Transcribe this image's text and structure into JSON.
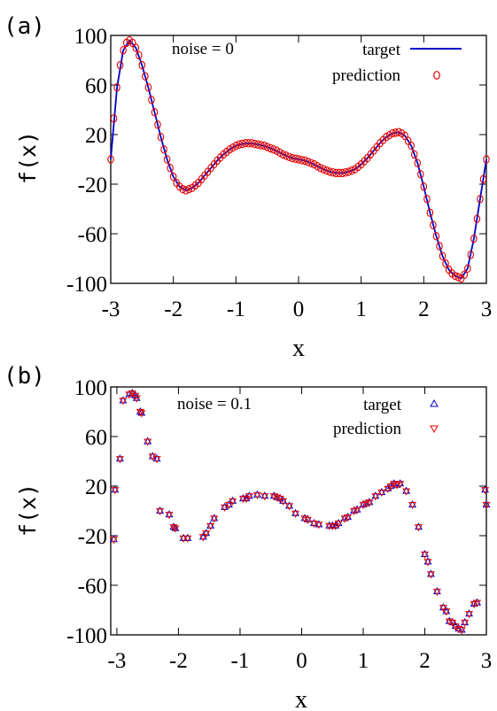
{
  "colors": {
    "target": "#0000cc",
    "prediction": "#e00000",
    "axis": "#000000"
  },
  "chart_data": [
    {
      "type": "line",
      "panel_label": "(a)",
      "annotation": "noise = 0",
      "xlabel": "x",
      "ylabel": "f(x)",
      "xlim": [
        -3,
        3
      ],
      "ylim": [
        -100,
        100
      ],
      "xticks": [
        "-3",
        "-2",
        "-1",
        "0",
        "1",
        "2",
        "3"
      ],
      "yticks": [
        "-100",
        "-60",
        "-20",
        "20",
        "60",
        "100"
      ],
      "legend_position": "top-right",
      "series": [
        {
          "name": "target",
          "style": "line",
          "x": [
            -3.0,
            -2.9,
            -2.8,
            -2.7,
            -2.6,
            -2.5,
            -2.4,
            -2.3,
            -2.2,
            -2.1,
            -2.0,
            -1.9,
            -1.8,
            -1.7,
            -1.6,
            -1.5,
            -1.4,
            -1.3,
            -1.2,
            -1.1,
            -1.0,
            -0.9,
            -0.8,
            -0.7,
            -0.6,
            -0.5,
            -0.4,
            -0.3,
            -0.2,
            -0.1,
            0.0,
            0.1,
            0.2,
            0.3,
            0.4,
            0.5,
            0.6,
            0.7,
            0.8,
            0.9,
            1.0,
            1.1,
            1.2,
            1.3,
            1.4,
            1.5,
            1.6,
            1.7,
            1.8,
            1.9,
            2.0,
            2.1,
            2.2,
            2.3,
            2.4,
            2.5,
            2.6,
            2.7,
            2.8,
            2.9,
            3.0
          ],
          "y": [
            0,
            58,
            88,
            96,
            90,
            76,
            58,
            38,
            18,
            0,
            -14,
            -22,
            -25,
            -23,
            -19,
            -13,
            -7,
            -1,
            4,
            8,
            11,
            12.5,
            13,
            12.5,
            11.5,
            10,
            8,
            5.5,
            3,
            1,
            0,
            -1,
            -3,
            -5.5,
            -8,
            -10,
            -11,
            -11,
            -10,
            -8,
            -4,
            1,
            7,
            13,
            18,
            21,
            22,
            19,
            11,
            -3,
            -22,
            -43,
            -62,
            -78,
            -89,
            -94,
            -96,
            -88,
            -64,
            -32,
            0
          ]
        },
        {
          "name": "prediction",
          "style": "circle",
          "x": [
            -3.0,
            -2.95,
            -2.9,
            -2.85,
            -2.8,
            -2.75,
            -2.7,
            -2.65,
            -2.6,
            -2.55,
            -2.5,
            -2.45,
            -2.4,
            -2.35,
            -2.3,
            -2.25,
            -2.2,
            -2.15,
            -2.1,
            -2.05,
            -2.0,
            -1.95,
            -1.9,
            -1.85,
            -1.8,
            -1.75,
            -1.7,
            -1.65,
            -1.6,
            -1.55,
            -1.5,
            -1.45,
            -1.4,
            -1.35,
            -1.3,
            -1.25,
            -1.2,
            -1.15,
            -1.1,
            -1.05,
            -1.0,
            -0.95,
            -0.9,
            -0.85,
            -0.8,
            -0.75,
            -0.7,
            -0.65,
            -0.6,
            -0.55,
            -0.5,
            -0.45,
            -0.4,
            -0.35,
            -0.3,
            -0.25,
            -0.2,
            -0.15,
            -0.1,
            -0.05,
            0.0,
            0.05,
            0.1,
            0.15,
            0.2,
            0.25,
            0.3,
            0.35,
            0.4,
            0.45,
            0.5,
            0.55,
            0.6,
            0.65,
            0.7,
            0.75,
            0.8,
            0.85,
            0.9,
            0.95,
            1.0,
            1.05,
            1.1,
            1.15,
            1.2,
            1.25,
            1.3,
            1.35,
            1.4,
            1.45,
            1.5,
            1.55,
            1.6,
            1.65,
            1.7,
            1.75,
            1.8,
            1.85,
            1.9,
            1.95,
            2.0,
            2.05,
            2.1,
            2.15,
            2.2,
            2.25,
            2.3,
            2.35,
            2.4,
            2.45,
            2.5,
            2.55,
            2.6,
            2.65,
            2.7,
            2.75,
            2.8,
            2.85,
            2.9,
            2.95,
            3.0
          ],
          "y": [
            0,
            33,
            58,
            76,
            88,
            94,
            96,
            94,
            90,
            84,
            76,
            67,
            58,
            48,
            38,
            28,
            18,
            8,
            0,
            -7,
            -14,
            -19,
            -22,
            -24,
            -25,
            -24,
            -23,
            -21,
            -19,
            -16,
            -13,
            -10,
            -7,
            -4,
            -1,
            1.5,
            4,
            6,
            8,
            9.5,
            11,
            12,
            12.5,
            13,
            13,
            13,
            12.5,
            12,
            11.5,
            11,
            10,
            9,
            8,
            7,
            5.5,
            4,
            3,
            2,
            1,
            0.5,
            0,
            -0.5,
            -1,
            -2,
            -3,
            -4,
            -5.5,
            -7,
            -8,
            -9,
            -10,
            -10.5,
            -11,
            -11,
            -11,
            -10.5,
            -10,
            -9,
            -8,
            -6,
            -4,
            -1.5,
            1,
            4,
            7,
            10,
            13,
            15.5,
            18,
            19.5,
            21,
            21.5,
            22,
            21,
            19,
            15,
            11,
            4,
            -3,
            -12,
            -22,
            -32,
            -43,
            -53,
            -62,
            -70,
            -78,
            -84,
            -89,
            -92,
            -94,
            -95,
            -96,
            -93,
            -88,
            -77,
            -64,
            -48,
            -32,
            -16,
            0
          ]
        }
      ]
    },
    {
      "type": "scatter",
      "panel_label": "(b)",
      "annotation": "noise = 0.1",
      "xlabel": "x",
      "ylabel": "f(x)",
      "xlim": [
        -3.1,
        3
      ],
      "ylim": [
        -100,
        100
      ],
      "xticks": [
        "-3",
        "-2",
        "-1",
        "0",
        "1",
        "2",
        "3"
      ],
      "yticks": [
        "-100",
        "-60",
        "-20",
        "20",
        "60",
        "100"
      ],
      "legend_position": "top-right",
      "series": [
        {
          "name": "target",
          "style": "triangle-up",
          "x": [
            -3.05,
            -3.03,
            -2.95,
            -2.9,
            -2.8,
            -2.75,
            -2.7,
            -2.68,
            -2.62,
            -2.6,
            -2.5,
            -2.42,
            -2.35,
            -2.3,
            -2.15,
            -2.08,
            -2.05,
            -1.92,
            -1.85,
            -1.6,
            -1.55,
            -1.48,
            -1.42,
            -1.25,
            -1.18,
            -1.12,
            -0.95,
            -0.9,
            -0.85,
            -0.72,
            -0.6,
            -0.45,
            -0.4,
            -0.35,
            -0.3,
            -0.2,
            -0.1,
            0.05,
            0.1,
            0.2,
            0.28,
            0.45,
            0.5,
            0.55,
            0.6,
            0.7,
            0.75,
            0.85,
            0.9,
            1.0,
            1.05,
            1.1,
            1.2,
            1.3,
            1.4,
            1.45,
            1.5,
            1.55,
            1.6,
            1.7,
            1.8,
            1.9,
            2.0,
            2.05,
            2.1,
            2.2,
            2.3,
            2.35,
            2.4,
            2.45,
            2.5,
            2.55,
            2.6,
            2.65,
            2.72,
            2.8,
            2.85,
            2.98,
            3.0
          ],
          "y": [
            -23,
            17,
            42,
            89,
            94,
            95,
            93,
            91,
            80,
            79,
            56,
            44,
            42,
            0,
            -3,
            -13,
            -14,
            -22,
            -22,
            -21,
            -18,
            -12,
            -6,
            3,
            5,
            8,
            10,
            10,
            12,
            13,
            12,
            12,
            11,
            10,
            8,
            4,
            -2,
            -6,
            -7,
            -10,
            -11,
            -12,
            -12,
            -12,
            -10,
            -6,
            -5,
            0,
            1,
            5,
            6,
            7,
            12,
            15,
            18,
            20,
            22,
            21,
            22,
            16,
            5,
            -13,
            -35,
            -41,
            -51,
            -65,
            -78,
            -81,
            -89,
            -90,
            -93,
            -95,
            -96,
            -90,
            -83,
            -75,
            -74,
            17,
            5
          ]
        },
        {
          "name": "prediction",
          "style": "triangle-down",
          "x": [
            -3.05,
            -3.03,
            -2.95,
            -2.9,
            -2.8,
            -2.75,
            -2.7,
            -2.68,
            -2.62,
            -2.6,
            -2.5,
            -2.42,
            -2.35,
            -2.3,
            -2.15,
            -2.08,
            -2.05,
            -1.92,
            -1.85,
            -1.6,
            -1.55,
            -1.48,
            -1.42,
            -1.25,
            -1.18,
            -1.12,
            -0.95,
            -0.9,
            -0.85,
            -0.72,
            -0.6,
            -0.45,
            -0.4,
            -0.35,
            -0.3,
            -0.2,
            -0.1,
            0.05,
            0.1,
            0.2,
            0.28,
            0.45,
            0.5,
            0.55,
            0.6,
            0.7,
            0.75,
            0.85,
            0.9,
            1.0,
            1.05,
            1.1,
            1.2,
            1.3,
            1.4,
            1.45,
            1.5,
            1.55,
            1.6,
            1.7,
            1.8,
            1.9,
            2.0,
            2.05,
            2.1,
            2.2,
            2.3,
            2.35,
            2.4,
            2.45,
            2.5,
            2.55,
            2.6,
            2.65,
            2.72,
            2.8,
            2.85,
            2.98,
            3.0
          ],
          "y": [
            -23,
            17,
            42,
            89,
            94,
            95,
            93,
            91,
            80,
            79,
            56,
            44,
            42,
            0,
            -3,
            -13,
            -14,
            -22,
            -22,
            -21,
            -18,
            -12,
            -6,
            3,
            5,
            8,
            10,
            10,
            12,
            13,
            12,
            12,
            11,
            10,
            8,
            4,
            -2,
            -6,
            -7,
            -10,
            -11,
            -12,
            -12,
            -12,
            -10,
            -6,
            -5,
            0,
            1,
            5,
            6,
            7,
            12,
            15,
            18,
            20,
            22,
            21,
            22,
            16,
            5,
            -13,
            -35,
            -41,
            -51,
            -65,
            -78,
            -81,
            -89,
            -90,
            -93,
            -95,
            -96,
            -90,
            -83,
            -75,
            -74,
            17,
            5
          ]
        }
      ]
    }
  ]
}
